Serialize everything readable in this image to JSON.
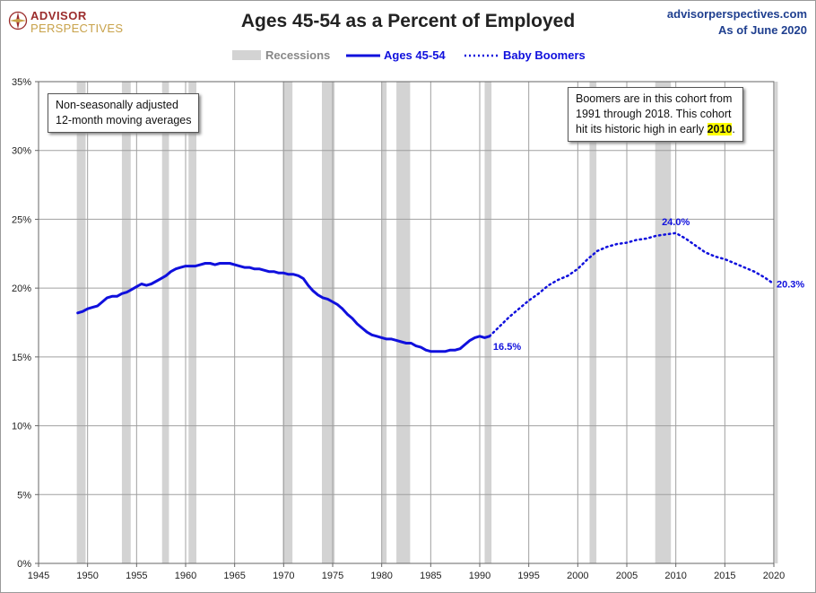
{
  "header": {
    "logo_line1": "ADVISOR",
    "logo_line2": "PERSPECTIVES",
    "title": "Ages 45-54 as a Percent of Employed",
    "site": "advisorperspectives.com",
    "as_of": "As of June 2020"
  },
  "colors": {
    "series": "#1010dd",
    "recession": "#d3d3d3",
    "grid": "#a0a0a0",
    "label": "#1f3f8f",
    "highlight": "#ffff00"
  },
  "notes": {
    "left_line1": "Non-seasonally adjusted",
    "left_line2": "12-month moving averages",
    "right_line1": "Boomers are in this cohort from",
    "right_line2": "1991  through 2018.  This cohort",
    "right_line3_pre": "hit its historic high in early ",
    "right_line3_hl": "2010",
    "right_line3_post": "."
  },
  "chart_data": {
    "type": "line",
    "title": "Ages 45-54 as a Percent of Employed",
    "xlim": [
      1945,
      2020
    ],
    "ylim": [
      0,
      35
    ],
    "x_ticks": [
      1945,
      1950,
      1955,
      1960,
      1965,
      1970,
      1975,
      1980,
      1985,
      1990,
      1995,
      2000,
      2005,
      2010,
      2015,
      2020
    ],
    "y_ticks": [
      0,
      5,
      10,
      15,
      20,
      25,
      30,
      35
    ],
    "y_tick_labels": [
      "0%",
      "5%",
      "10%",
      "15%",
      "20%",
      "25%",
      "30%",
      "35%"
    ],
    "grid": true,
    "legend_position": "top-center",
    "legend": [
      "Recessions",
      "Ages 45-54",
      "Baby Boomers"
    ],
    "recessions": [
      [
        1948.9,
        1949.8
      ],
      [
        1953.5,
        1954.4
      ],
      [
        1957.6,
        1958.3
      ],
      [
        1960.3,
        1961.1
      ],
      [
        1969.9,
        1970.9
      ],
      [
        1973.9,
        1975.2
      ],
      [
        1980.0,
        1980.5
      ],
      [
        1981.5,
        1982.9
      ],
      [
        1990.5,
        1991.2
      ],
      [
        2001.2,
        2001.9
      ],
      [
        2007.9,
        2009.5
      ],
      [
        2020.1,
        2020.4
      ]
    ],
    "series": [
      {
        "name": "Ages 45-54",
        "style": "solid",
        "points": [
          [
            1949.0,
            18.2
          ],
          [
            1949.5,
            18.3
          ],
          [
            1950.0,
            18.5
          ],
          [
            1950.5,
            18.6
          ],
          [
            1951.0,
            18.7
          ],
          [
            1951.5,
            19.0
          ],
          [
            1952.0,
            19.3
          ],
          [
            1952.5,
            19.4
          ],
          [
            1953.0,
            19.4
          ],
          [
            1953.5,
            19.6
          ],
          [
            1954.0,
            19.7
          ],
          [
            1954.5,
            19.9
          ],
          [
            1955.0,
            20.1
          ],
          [
            1955.5,
            20.3
          ],
          [
            1956.0,
            20.2
          ],
          [
            1956.5,
            20.3
          ],
          [
            1957.0,
            20.5
          ],
          [
            1957.5,
            20.7
          ],
          [
            1958.0,
            20.9
          ],
          [
            1958.5,
            21.2
          ],
          [
            1959.0,
            21.4
          ],
          [
            1959.5,
            21.5
          ],
          [
            1960.0,
            21.6
          ],
          [
            1960.5,
            21.6
          ],
          [
            1961.0,
            21.6
          ],
          [
            1961.5,
            21.7
          ],
          [
            1962.0,
            21.8
          ],
          [
            1962.5,
            21.8
          ],
          [
            1963.0,
            21.7
          ],
          [
            1963.5,
            21.8
          ],
          [
            1964.0,
            21.8
          ],
          [
            1964.5,
            21.8
          ],
          [
            1965.0,
            21.7
          ],
          [
            1965.5,
            21.6
          ],
          [
            1966.0,
            21.5
          ],
          [
            1966.5,
            21.5
          ],
          [
            1967.0,
            21.4
          ],
          [
            1967.5,
            21.4
          ],
          [
            1968.0,
            21.3
          ],
          [
            1968.5,
            21.2
          ],
          [
            1969.0,
            21.2
          ],
          [
            1969.5,
            21.1
          ],
          [
            1970.0,
            21.1
          ],
          [
            1970.5,
            21.0
          ],
          [
            1971.0,
            21.0
          ],
          [
            1971.5,
            20.9
          ],
          [
            1972.0,
            20.7
          ],
          [
            1972.5,
            20.2
          ],
          [
            1973.0,
            19.8
          ],
          [
            1973.5,
            19.5
          ],
          [
            1974.0,
            19.3
          ],
          [
            1974.5,
            19.2
          ],
          [
            1975.0,
            19.0
          ],
          [
            1975.5,
            18.8
          ],
          [
            1976.0,
            18.5
          ],
          [
            1976.5,
            18.1
          ],
          [
            1977.0,
            17.8
          ],
          [
            1977.5,
            17.4
          ],
          [
            1978.0,
            17.1
          ],
          [
            1978.5,
            16.8
          ],
          [
            1979.0,
            16.6
          ],
          [
            1979.5,
            16.5
          ],
          [
            1980.0,
            16.4
          ],
          [
            1980.5,
            16.3
          ],
          [
            1981.0,
            16.3
          ],
          [
            1981.5,
            16.2
          ],
          [
            1982.0,
            16.1
          ],
          [
            1982.5,
            16.0
          ],
          [
            1983.0,
            16.0
          ],
          [
            1983.5,
            15.8
          ],
          [
            1984.0,
            15.7
          ],
          [
            1984.5,
            15.5
          ],
          [
            1985.0,
            15.4
          ],
          [
            1985.5,
            15.4
          ],
          [
            1986.0,
            15.4
          ],
          [
            1986.5,
            15.4
          ],
          [
            1987.0,
            15.5
          ],
          [
            1987.5,
            15.5
          ],
          [
            1988.0,
            15.6
          ],
          [
            1988.5,
            15.9
          ],
          [
            1989.0,
            16.2
          ],
          [
            1989.5,
            16.4
          ],
          [
            1990.0,
            16.5
          ],
          [
            1990.5,
            16.4
          ],
          [
            1991.0,
            16.5
          ]
        ]
      },
      {
        "name": "Baby Boomers",
        "style": "dotted",
        "points": [
          [
            1991.0,
            16.5
          ],
          [
            1992.0,
            17.2
          ],
          [
            1993.0,
            17.9
          ],
          [
            1994.0,
            18.5
          ],
          [
            1995.0,
            19.1
          ],
          [
            1996.0,
            19.6
          ],
          [
            1997.0,
            20.2
          ],
          [
            1998.0,
            20.6
          ],
          [
            1999.0,
            20.9
          ],
          [
            2000.0,
            21.4
          ],
          [
            2001.0,
            22.1
          ],
          [
            2002.0,
            22.7
          ],
          [
            2003.0,
            23.0
          ],
          [
            2004.0,
            23.2
          ],
          [
            2005.0,
            23.3
          ],
          [
            2006.0,
            23.5
          ],
          [
            2007.0,
            23.6
          ],
          [
            2008.0,
            23.8
          ],
          [
            2009.0,
            23.9
          ],
          [
            2010.0,
            24.0
          ],
          [
            2011.0,
            23.6
          ],
          [
            2012.0,
            23.1
          ],
          [
            2013.0,
            22.6
          ],
          [
            2014.0,
            22.3
          ],
          [
            2015.0,
            22.1
          ],
          [
            2016.0,
            21.8
          ],
          [
            2017.0,
            21.5
          ],
          [
            2018.0,
            21.2
          ],
          [
            2019.0,
            20.8
          ],
          [
            2020.0,
            20.3
          ]
        ]
      }
    ],
    "data_labels": [
      {
        "x": 1991.0,
        "y": 16.5,
        "text": "16.5%",
        "pos": "below-right"
      },
      {
        "x": 2010.0,
        "y": 24.0,
        "text": "24.0%",
        "pos": "above"
      },
      {
        "x": 2020.0,
        "y": 20.3,
        "text": "20.3%",
        "pos": "right"
      }
    ]
  }
}
